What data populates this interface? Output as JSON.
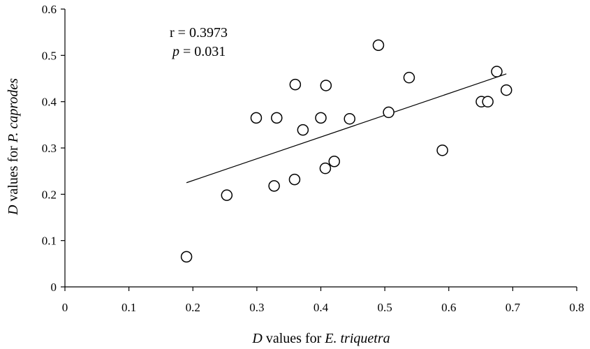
{
  "chart_data": {
    "type": "scatter",
    "title": "",
    "xlabel": {
      "italic": "D",
      "text1": " values for ",
      "italic2": "E. triquetra"
    },
    "ylabel": {
      "italic": "D",
      "text1": " values for ",
      "italic2": "P. caprodes"
    },
    "xlim": [
      0,
      0.8
    ],
    "ylim": [
      0,
      0.6
    ],
    "x_ticks": [
      "0",
      "0.1",
      "0.2",
      "0.3",
      "0.4",
      "0.5",
      "0.6",
      "0.7",
      "0.8"
    ],
    "y_ticks": [
      "0",
      "0.1",
      "0.2",
      "0.3",
      "0.4",
      "0.5",
      "0.6"
    ],
    "grid": false,
    "marker": "open-circle",
    "points": [
      {
        "x": 0.19,
        "y": 0.065
      },
      {
        "x": 0.253,
        "y": 0.198
      },
      {
        "x": 0.299,
        "y": 0.365
      },
      {
        "x": 0.327,
        "y": 0.218
      },
      {
        "x": 0.331,
        "y": 0.365
      },
      {
        "x": 0.359,
        "y": 0.232
      },
      {
        "x": 0.36,
        "y": 0.437
      },
      {
        "x": 0.372,
        "y": 0.339
      },
      {
        "x": 0.4,
        "y": 0.365
      },
      {
        "x": 0.407,
        "y": 0.256
      },
      {
        "x": 0.408,
        "y": 0.435
      },
      {
        "x": 0.421,
        "y": 0.271
      },
      {
        "x": 0.445,
        "y": 0.363
      },
      {
        "x": 0.49,
        "y": 0.522
      },
      {
        "x": 0.506,
        "y": 0.377
      },
      {
        "x": 0.538,
        "y": 0.452
      },
      {
        "x": 0.59,
        "y": 0.295
      },
      {
        "x": 0.651,
        "y": 0.4
      },
      {
        "x": 0.661,
        "y": 0.4
      },
      {
        "x": 0.675,
        "y": 0.465
      },
      {
        "x": 0.69,
        "y": 0.425
      }
    ],
    "trendline": {
      "x": [
        0.19,
        0.69
      ],
      "y": [
        0.225,
        0.46
      ]
    },
    "annotations": {
      "r_text": "r = 0.3973",
      "p_italic": "p",
      "p_rest": " = 0.031"
    }
  }
}
